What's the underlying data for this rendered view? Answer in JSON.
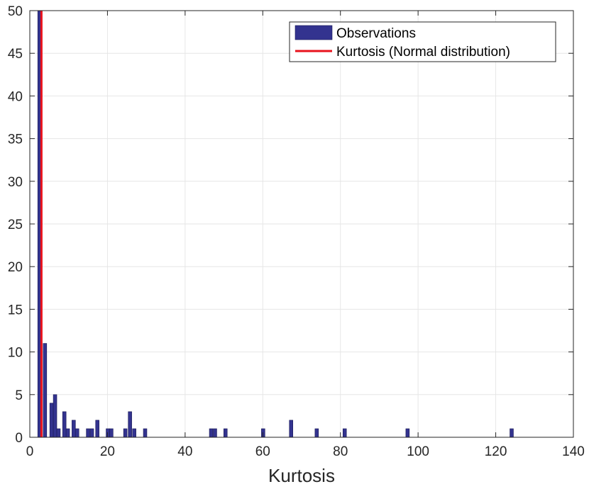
{
  "chart_data": {
    "type": "bar",
    "xlabel": "Kurtosis",
    "ylabel": "",
    "xlim": [
      0,
      140
    ],
    "ylim": [
      0,
      50
    ],
    "x_ticks": [
      0,
      20,
      40,
      60,
      80,
      100,
      120,
      140
    ],
    "y_ticks": [
      0,
      5,
      10,
      15,
      20,
      25,
      30,
      35,
      40,
      45,
      50
    ],
    "grid": true,
    "legend": {
      "placement": "top-right",
      "entries": [
        "Observations",
        "Kurtosis (Normal distribution)"
      ]
    },
    "series": [
      {
        "name": "Observations",
        "kind": "histogram",
        "color": "#33338f",
        "bin_width": 0.9,
        "bins": [
          {
            "x": 2.5,
            "count": 50
          },
          {
            "x": 3.9,
            "count": 11
          },
          {
            "x": 5.6,
            "count": 4
          },
          {
            "x": 6.5,
            "count": 5
          },
          {
            "x": 7.4,
            "count": 1
          },
          {
            "x": 8.9,
            "count": 3
          },
          {
            "x": 9.8,
            "count": 1
          },
          {
            "x": 11.3,
            "count": 2
          },
          {
            "x": 12.2,
            "count": 1
          },
          {
            "x": 15.0,
            "count": 1
          },
          {
            "x": 16.0,
            "count": 1
          },
          {
            "x": 17.4,
            "count": 2
          },
          {
            "x": 20.1,
            "count": 1
          },
          {
            "x": 21.0,
            "count": 1
          },
          {
            "x": 24.6,
            "count": 1
          },
          {
            "x": 25.8,
            "count": 3
          },
          {
            "x": 26.9,
            "count": 1
          },
          {
            "x": 29.7,
            "count": 1
          },
          {
            "x": 46.7,
            "count": 1
          },
          {
            "x": 47.7,
            "count": 1
          },
          {
            "x": 50.4,
            "count": 1
          },
          {
            "x": 60.1,
            "count": 1
          },
          {
            "x": 67.3,
            "count": 2
          },
          {
            "x": 73.9,
            "count": 1
          },
          {
            "x": 81.1,
            "count": 1
          },
          {
            "x": 97.3,
            "count": 1
          },
          {
            "x": 124.1,
            "count": 1
          }
        ]
      },
      {
        "name": "Kurtosis (Normal distribution)",
        "kind": "vertical-line",
        "color": "#e8121c",
        "x": 3
      }
    ]
  }
}
